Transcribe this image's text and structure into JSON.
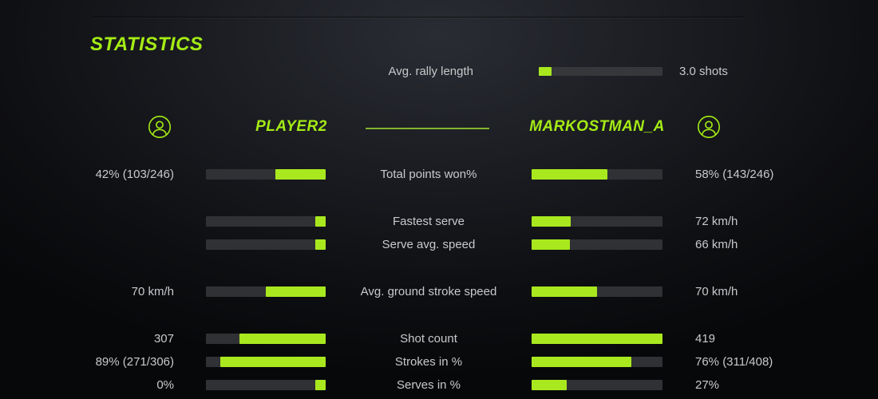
{
  "title": "STATISTICS",
  "colors": {
    "accent": "#a4eb15",
    "bar_fill": "#a9e81e",
    "bar_track": "#303134",
    "text": "#c7c9cb"
  },
  "rally": {
    "label": "Avg. rally length",
    "value": "3.0 shots",
    "pct": 10
  },
  "players": {
    "left": {
      "name": "PLAYER2",
      "icon": "user-icon"
    },
    "right": {
      "name": "MARKOSTMAN_A",
      "icon": "user-icon"
    }
  },
  "rows": [
    {
      "label": "Total points won%",
      "left_value": "42% (103/246)",
      "left_pct": 42,
      "right_value": "58% (143/246)",
      "right_pct": 58
    },
    {
      "label": "Fastest serve",
      "left_value": "",
      "left_pct": 9,
      "right_value": "72 km/h",
      "right_pct": 30
    },
    {
      "label": "Serve avg. speed",
      "left_value": "",
      "left_pct": 9,
      "right_value": "66 km/h",
      "right_pct": 29
    },
    {
      "label": "Avg. ground stroke speed",
      "left_value": "70 km/h",
      "left_pct": 50,
      "right_value": "70 km/h",
      "right_pct": 50
    },
    {
      "label": "Shot count",
      "left_value": "307",
      "left_pct": 72,
      "right_value": "419",
      "right_pct": 100
    },
    {
      "label": "Strokes in %",
      "left_value": "89% (271/306)",
      "left_pct": 88,
      "right_value": "76% (311/408)",
      "right_pct": 76
    },
    {
      "label": "Serves in %",
      "left_value": "0%",
      "left_pct": 9,
      "right_value": "27%",
      "right_pct": 27
    }
  ]
}
